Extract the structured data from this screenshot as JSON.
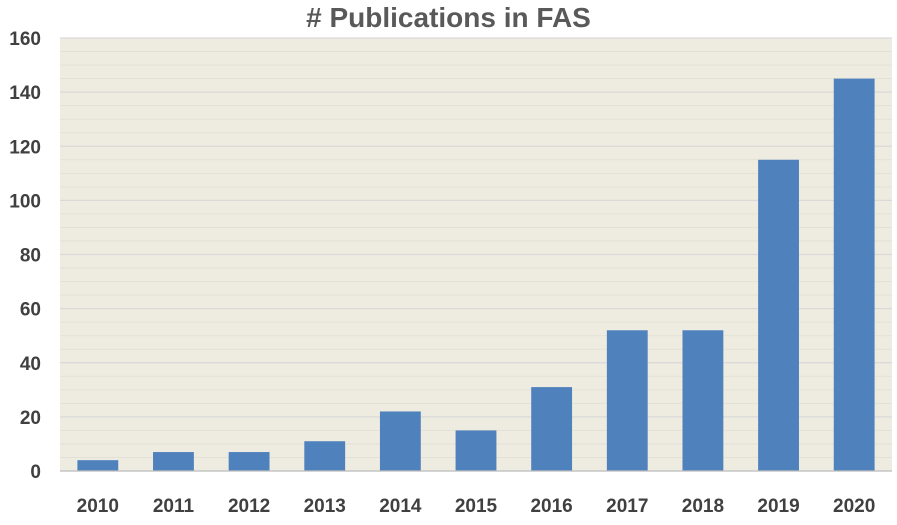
{
  "chart_data": {
    "type": "bar",
    "title": "# Publications in FAS",
    "categories": [
      "2010",
      "2011",
      "2012",
      "2013",
      "2014",
      "2015",
      "2016",
      "2017",
      "2018",
      "2019",
      "2020"
    ],
    "values": [
      4,
      7,
      7,
      11,
      22,
      15,
      31,
      52,
      52,
      115,
      145
    ],
    "ylim": [
      0,
      160
    ],
    "yticks": [
      0,
      20,
      40,
      60,
      80,
      100,
      120,
      140,
      160
    ],
    "grid": true,
    "legend": "none",
    "colors": {
      "bar": "#4f81bd",
      "plot_background": "#eeece1",
      "grid": "#d9d9d9",
      "text": "#404040"
    }
  }
}
